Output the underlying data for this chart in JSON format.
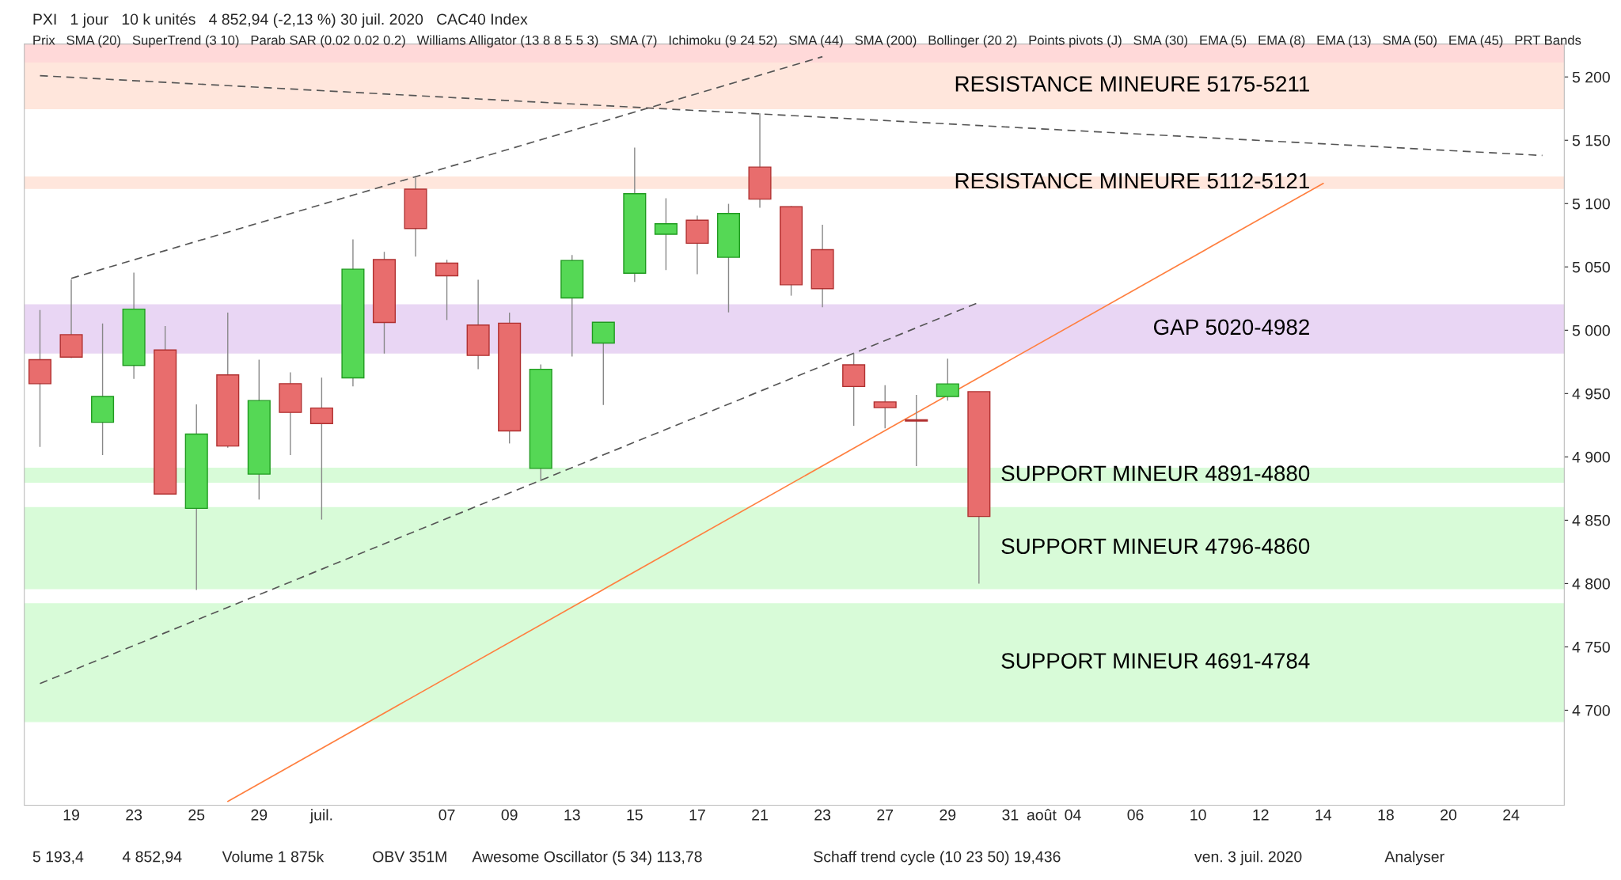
{
  "chart_data": {
    "type": "candlestick",
    "title": "PXI   1 jour   10 k unités   4 852,94 (-2,13 %) 30 juil. 2020   CAC40 Index",
    "subtitle": "Prix   SMA (20)   SuperTrend (3 10)   Parab SAR (0.02 0.02 0.2)   Williams Alligator (13 8 8 5 5 3)   SMA (7)   Ichimoku (9 24 52)   SMA (44)   SMA (200)   Bollinger (20 2)   Points pivots (J)   SMA (30)   EMA (5)   EMA (8)   EMA (13)   SMA (50)   EMA (45)   PRT Bands",
    "categories": [
      null,
      "19",
      null,
      "23",
      null,
      "25",
      null,
      "29",
      null,
      "juil.",
      null,
      null,
      null,
      "07",
      null,
      "09",
      null,
      "13",
      null,
      "15",
      null,
      "17",
      null,
      "21",
      null,
      "23",
      null,
      "27",
      null,
      "29",
      null,
      "31",
      "août",
      "04",
      null,
      "06",
      null,
      "10",
      null,
      "12",
      null,
      "14",
      null,
      "18",
      null,
      "20",
      null,
      "24",
      null
    ],
    "ohlc": [
      [
        4976.8,
        5015.9,
        4907.8,
        4957.8
      ],
      [
        4996.5,
        5040,
        4978,
        4978.8
      ],
      [
        4927.3,
        5005.3,
        4901.5,
        4947.7
      ],
      [
        4972.2,
        5045.5,
        4961.6,
        5016.7
      ],
      [
        4984.4,
        5003.3,
        4870.7,
        4870.7
      ],
      [
        4859.4,
        4941.4,
        4795,
        4918
      ],
      [
        4964.7,
        5013.9,
        4907.3,
        4908.6
      ],
      [
        4886.4,
        4976.8,
        4866.4,
        4944.5
      ],
      [
        4957.8,
        4966.7,
        4901.5,
        4935.1
      ],
      [
        4938.6,
        4962.6,
        4850.5,
        4926.3
      ],
      [
        4962.4,
        5071.7,
        4955.6,
        5048.2
      ],
      [
        5055.8,
        5061.9,
        4981.6,
        5006.1
      ],
      [
        5111.4,
        5120.7,
        5058.1,
        5080.3
      ],
      [
        5053,
        5055.6,
        5008.1,
        5043
      ],
      [
        5004.1,
        5039.9,
        4969.2,
        4980.1
      ],
      [
        5005.6,
        5013.9,
        4910.6,
        4920.5
      ],
      [
        4890.9,
        4973,
        4880.8,
        4969.2
      ],
      [
        5025.5,
        5059.4,
        4979.3,
        5055.1
      ],
      [
        4989.9,
        5006.3,
        4941,
        5006.3
      ],
      [
        5045,
        5144.2,
        5038.1,
        5107.8
      ],
      [
        5075.8,
        5104.3,
        5047.5,
        5084.1
      ],
      [
        5086.9,
        5090.4,
        5044.2,
        5068.7
      ],
      [
        5057.6,
        5099.8,
        5014.1,
        5092.2
      ],
      [
        5128.8,
        5171.2,
        5096.7,
        5103.5
      ],
      [
        5097.5,
        5098,
        5027.3,
        5035.9
      ],
      [
        5063.6,
        5083.3,
        5018.2,
        5032.8
      ],
      [
        4972.7,
        4981.8,
        4924.5,
        4955.6
      ],
      [
        4943.4,
        4956.6,
        4922.5,
        4938.9
      ],
      [
        4929.3,
        4949,
        4892.7,
        4928.3
      ],
      [
        4947.7,
        4977.5,
        4944.5,
        4957.6
      ],
      [
        4951.5,
        4951.5,
        4800,
        4852.94
      ],
      null,
      null,
      null,
      null,
      null,
      null,
      null,
      null,
      null,
      null,
      null,
      null,
      null,
      null,
      null,
      null,
      null,
      null
    ],
    "series": [
      {
        "type": "line",
        "color": "#ff7f3f",
        "line_style": "solid",
        "values": [
          null,
          null,
          null,
          null,
          null,
          null,
          4628,
          null,
          null,
          null,
          null,
          null,
          null,
          null,
          null,
          null,
          null,
          null,
          null,
          null,
          null,
          null,
          null,
          null,
          null,
          null,
          null,
          null,
          null,
          null,
          null,
          null,
          null,
          null,
          null,
          null,
          null,
          null,
          null,
          null,
          null,
          5116,
          null,
          null,
          null,
          null,
          null,
          null,
          null
        ]
      },
      {
        "type": "line",
        "color": "#555555",
        "line_style": "dashed",
        "values": [
          null,
          5041,
          null,
          null,
          null,
          null,
          null,
          null,
          null,
          null,
          null,
          null,
          null,
          null,
          null,
          null,
          null,
          null,
          null,
          null,
          null,
          null,
          null,
          null,
          null,
          5216,
          null,
          null,
          null,
          null,
          null,
          null,
          null,
          null,
          null,
          null,
          null,
          null,
          null,
          null,
          null,
          null,
          null,
          null,
          null,
          null,
          null,
          null,
          null
        ]
      },
      {
        "type": "line",
        "color": "#555555",
        "line_style": "dashed",
        "values": [
          4721,
          null,
          null,
          null,
          null,
          null,
          null,
          null,
          null,
          null,
          null,
          null,
          null,
          null,
          null,
          null,
          null,
          null,
          null,
          null,
          null,
          null,
          null,
          null,
          null,
          null,
          null,
          null,
          null,
          null,
          5022,
          null,
          null,
          null,
          null,
          null,
          null,
          null,
          null,
          null,
          null,
          null,
          null,
          null,
          null,
          null,
          null,
          null,
          null
        ]
      },
      {
        "type": "line",
        "color": "#555555",
        "line_style": "dashed",
        "values": [
          5201,
          null,
          null,
          null,
          null,
          null,
          null,
          null,
          null,
          null,
          null,
          null,
          null,
          null,
          null,
          null,
          null,
          null,
          null,
          null,
          null,
          null,
          null,
          null,
          null,
          null,
          null,
          null,
          null,
          null,
          null,
          null,
          null,
          null,
          null,
          null,
          null,
          null,
          null,
          null,
          null,
          null,
          null,
          null,
          null,
          null,
          null,
          null,
          5138
        ]
      }
    ],
    "bands": [
      {
        "axis": "y",
        "from": 5200,
        "to": 5226,
        "color": "#ffd9d9"
      },
      {
        "axis": "y",
        "from": 5175,
        "to": 5211,
        "color": "#ffe6dc",
        "label": "RESISTANCE MINEURE 5175-5211"
      },
      {
        "axis": "y",
        "from": 5112,
        "to": 5121,
        "color": "#ffe6dc",
        "label": "RESISTANCE MINEURE 5112-5121"
      },
      {
        "axis": "y",
        "from": 4982,
        "to": 5020,
        "color": "#e9d6f4",
        "label": "GAP 5020-4982"
      },
      {
        "axis": "y",
        "from": 4880,
        "to": 4891,
        "color": "#d8fbd8",
        "label": "SUPPORT MINEUR 4891-4880"
      },
      {
        "axis": "y",
        "from": 4796,
        "to": 4860,
        "color": "#d8fbd8",
        "label": "SUPPORT MINEUR 4796-4860"
      },
      {
        "axis": "y",
        "from": 4691,
        "to": 4784,
        "color": "#d8fbd8",
        "label": "SUPPORT MINEUR 4691-4784"
      }
    ],
    "ylim": [
      4625,
      5226
    ],
    "yticks": [
      {
        "value": 4700,
        "label": "4 700"
      },
      {
        "value": 4750,
        "label": "4 750"
      },
      {
        "value": 4800,
        "label": "4 800"
      },
      {
        "value": 4850,
        "label": "4 850"
      },
      {
        "value": 4900,
        "label": "4 900"
      },
      {
        "value": 4950,
        "label": "4 950"
      },
      {
        "value": 5000,
        "label": "5 000"
      },
      {
        "value": 5050,
        "label": "5 050"
      },
      {
        "value": 5100,
        "label": "5 100"
      },
      {
        "value": 5150,
        "label": "5 150"
      },
      {
        "value": 5200,
        "label": "5 200"
      }
    ],
    "annotations": [
      "5 193,4",
      "4 852,94",
      "Volume 1 875k",
      "OBV 351M",
      "Awesome Oscillator (5 34) 113,78",
      "Schaff trend cycle (10 23 50) 19,436",
      "ven. 3 juil. 2020",
      "Analyser"
    ],
    "grid": false
  }
}
